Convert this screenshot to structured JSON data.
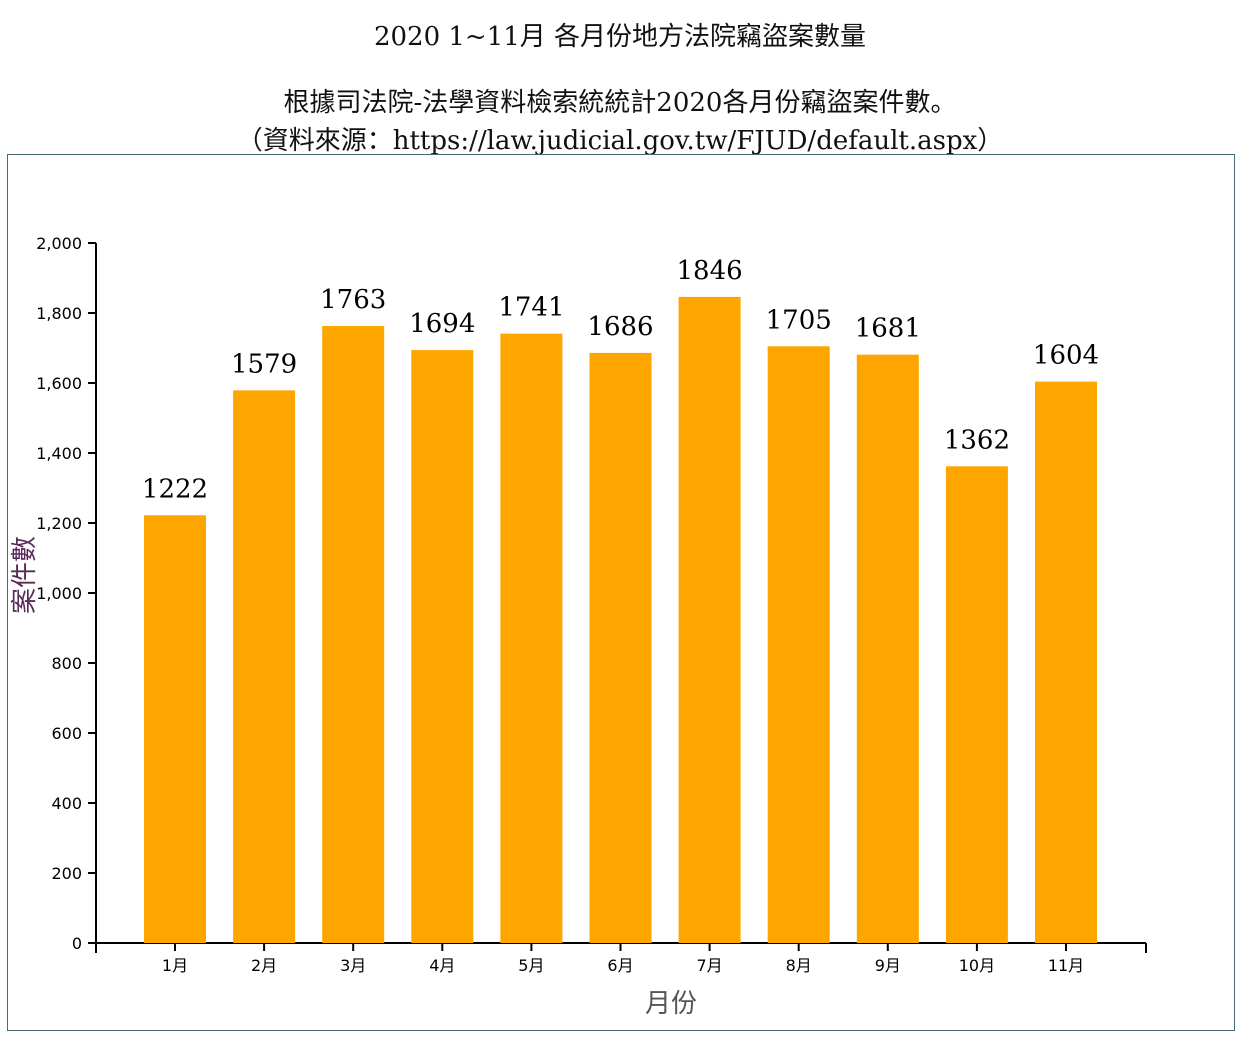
{
  "header": {
    "title": "2020 1~11月 各月份地方法院竊盜案數量",
    "subtitle_line1": "根據司法院-法學資料檢索統統計2020各月份竊盜案件數。",
    "subtitle_line2": "（資料來源：https://law.judicial.gov.tw/FJUD/default.aspx）"
  },
  "chart_data": {
    "type": "bar",
    "title": "2020 1~11月 各月份地方法院竊盜案數量",
    "xlabel": "月份",
    "ylabel": "案件數",
    "categories": [
      "1月",
      "2月",
      "3月",
      "4月",
      "5月",
      "6月",
      "7月",
      "8月",
      "9月",
      "10月",
      "11月"
    ],
    "values": [
      1222,
      1579,
      1763,
      1694,
      1741,
      1686,
      1846,
      1705,
      1681,
      1362,
      1604
    ],
    "ylim": [
      0,
      2000
    ],
    "yticks": [
      0,
      200,
      400,
      600,
      800,
      1000,
      1200,
      1400,
      1600,
      1800,
      2000
    ],
    "ytick_labels": [
      "0",
      "200",
      "400",
      "600",
      "800",
      "1,000",
      "1,200",
      "1,400",
      "1,600",
      "1,800",
      "2,000"
    ],
    "grid": false,
    "legend": "none",
    "bar_color": "#ffa500",
    "ylabel_color": "#5a2a5a",
    "xlabel_color": "#555555"
  }
}
